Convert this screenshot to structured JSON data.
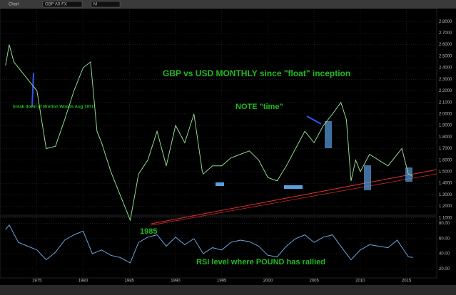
{
  "toolbar": {
    "window": "Chart",
    "symbol": "GBP A0-FX",
    "interval": "M"
  },
  "chart_data": [
    {
      "type": "line",
      "title": "GBP vs USD MONTHLY since \"float\" inception",
      "annotations": [
        "break down of Bretton Woods Aug 1971",
        "NOTE \"time\"",
        "1985"
      ],
      "x": [
        1971.6,
        1972,
        1972.5,
        1973,
        1974,
        1975,
        1976,
        1977,
        1978,
        1979,
        1980,
        1980.8,
        1981.5,
        1982,
        1983,
        1984,
        1985.1,
        1986,
        1987,
        1988,
        1989,
        1990,
        1991,
        1992,
        1992.9,
        1993,
        1994,
        1995,
        1996,
        1997,
        1998,
        1999,
        2000,
        2001,
        2002,
        2003,
        2004,
        2005,
        2006,
        2007,
        2007.9,
        2008.5,
        2009,
        2009.5,
        2010,
        2011,
        2012,
        2013,
        2014.5,
        2015.2,
        2015.7
      ],
      "values": [
        2.42,
        2.6,
        2.45,
        2.4,
        2.3,
        2.2,
        1.7,
        1.72,
        1.95,
        2.2,
        2.4,
        2.45,
        1.85,
        1.75,
        1.5,
        1.3,
        1.08,
        1.48,
        1.6,
        1.85,
        1.55,
        1.9,
        1.75,
        2.0,
        1.5,
        1.48,
        1.55,
        1.55,
        1.62,
        1.65,
        1.68,
        1.6,
        1.45,
        1.42,
        1.55,
        1.7,
        1.85,
        1.75,
        1.9,
        2.0,
        2.1,
        1.95,
        1.42,
        1.6,
        1.5,
        1.65,
        1.6,
        1.55,
        1.7,
        1.48,
        1.46
      ],
      "color": "#8fd98f",
      "xlim": [
        1971,
        2018.2
      ],
      "xticks": [
        1975,
        1980,
        1985,
        1990,
        1995,
        2000,
        2005,
        2010,
        2015
      ],
      "ylim": [
        1.0,
        2.9
      ],
      "yticks": [
        {
          "value": 1.1,
          "label": "1.1000"
        },
        {
          "value": 1.2,
          "label": "1.2000"
        },
        {
          "value": 1.3,
          "label": "1.3000"
        },
        {
          "value": 1.4,
          "label": "1.4000"
        },
        {
          "value": 1.5,
          "label": "1.5000"
        },
        {
          "value": 1.6,
          "label": "1.6000"
        },
        {
          "value": 1.7,
          "label": "1.7000"
        },
        {
          "value": 1.8,
          "label": "1.8000"
        },
        {
          "value": 1.9,
          "label": "1.9000"
        },
        {
          "value": 2.0,
          "label": "2.0000"
        },
        {
          "value": 2.1,
          "label": "2.1000"
        },
        {
          "value": 2.2,
          "label": "2.2000"
        },
        {
          "value": 2.3,
          "label": "2.3000"
        },
        {
          "value": 2.4,
          "label": "2.4000"
        },
        {
          "value": 2.5,
          "label": "2.5000"
        },
        {
          "value": 2.6,
          "label": "2.6000"
        },
        {
          "value": 2.7,
          "label": "2.7000"
        },
        {
          "value": 2.8,
          "label": "2.8000"
        }
      ],
      "grid": true
    },
    {
      "type": "line",
      "title": "RSI level where POUND has rallied",
      "x": [
        1971.6,
        1972,
        1973,
        1974,
        1975,
        1976,
        1977,
        1978,
        1979,
        1980,
        1981,
        1982,
        1983,
        1984,
        1985.1,
        1986,
        1987,
        1988,
        1989,
        1990,
        1991,
        1992,
        1993,
        1994,
        1995,
        1996,
        1997,
        1998,
        1999,
        2000,
        2001,
        2002,
        2003,
        2004,
        2005,
        2006,
        2007,
        2008,
        2009,
        2010,
        2011,
        2012,
        2013,
        2014,
        2015.2,
        2015.7
      ],
      "values": [
        72,
        78,
        55,
        50,
        45,
        32,
        42,
        58,
        65,
        70,
        40,
        45,
        38,
        35,
        28,
        55,
        62,
        65,
        50,
        62,
        52,
        60,
        40,
        48,
        45,
        55,
        58,
        56,
        50,
        38,
        36,
        50,
        60,
        65,
        55,
        62,
        65,
        48,
        32,
        45,
        52,
        50,
        48,
        58,
        36,
        35
      ],
      "color": "#6aa6e0",
      "xlim": [
        1971,
        2018.2
      ],
      "ylim": [
        10,
        90
      ],
      "yticks": [
        {
          "value": 20,
          "label": "20.00"
        },
        {
          "value": 40,
          "label": "40.00"
        },
        {
          "value": 60,
          "label": "60.00"
        },
        {
          "value": 80,
          "label": "80.00"
        }
      ],
      "grid": true
    }
  ]
}
